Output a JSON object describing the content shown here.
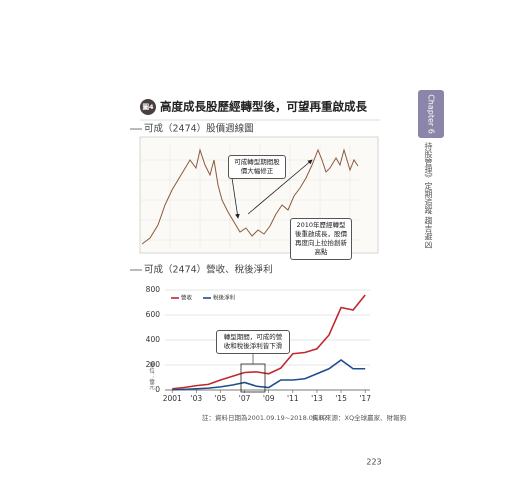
{
  "page": {
    "badge": "圖4",
    "title": "高度成長股歷經轉型後，可望再重啟成長",
    "page_number": "223",
    "side_tab": {
      "chapter": "Chapter 6",
      "text": "持股管理》定期追蹤 趨吉避凶"
    },
    "note": "註：資料日期為2001.09.19~2018.05.07",
    "source": "資料來源：XQ全球贏家、財報狗"
  },
  "stock_chart": {
    "subtitle": "可成（2474）股價週線圖",
    "annotations": [
      "可成轉型期間股價大幅修正",
      "2010年歷經轉型後重啟成長，股價再度向上拉抬創新高點"
    ]
  },
  "chart_data": {
    "type": "line",
    "title": "可成（2474）營收、稅後淨利",
    "y_label": "單位：億元",
    "x": [
      2001,
      2002,
      2003,
      2004,
      2005,
      2006,
      2007,
      2008,
      2009,
      2010,
      2011,
      2012,
      2013,
      2014,
      2015,
      2016,
      2017
    ],
    "series": [
      {
        "name": "營收",
        "color": "#c0282d",
        "values": [
          10,
          20,
          35,
          45,
          80,
          110,
          140,
          145,
          130,
          175,
          290,
          300,
          330,
          440,
          660,
          640,
          760
        ]
      },
      {
        "name": "稅後淨利",
        "color": "#1f4e8c",
        "values": [
          2,
          5,
          10,
          15,
          25,
          40,
          60,
          30,
          20,
          80,
          80,
          90,
          130,
          170,
          240,
          170,
          170
        ]
      }
    ],
    "xlim": [
      2000.4,
      2017.4
    ],
    "xticks": [
      2001,
      {
        "value": 2003,
        "label": "'03"
      },
      {
        "value": 2005,
        "label": "'05"
      },
      {
        "value": 2007,
        "label": "'07"
      },
      {
        "value": 2009,
        "label": "'09"
      },
      {
        "value": 2011,
        "label": "'11"
      },
      {
        "value": 2013,
        "label": "'13"
      },
      {
        "value": 2015,
        "label": "'15"
      },
      {
        "value": 2017,
        "label": "'17"
      }
    ],
    "ylim": [
      0,
      800
    ],
    "yticks": [
      0,
      200,
      400,
      600,
      800
    ],
    "grid": true,
    "annotation": "轉型期間，可成的營收和稅後淨利皆下滑"
  }
}
